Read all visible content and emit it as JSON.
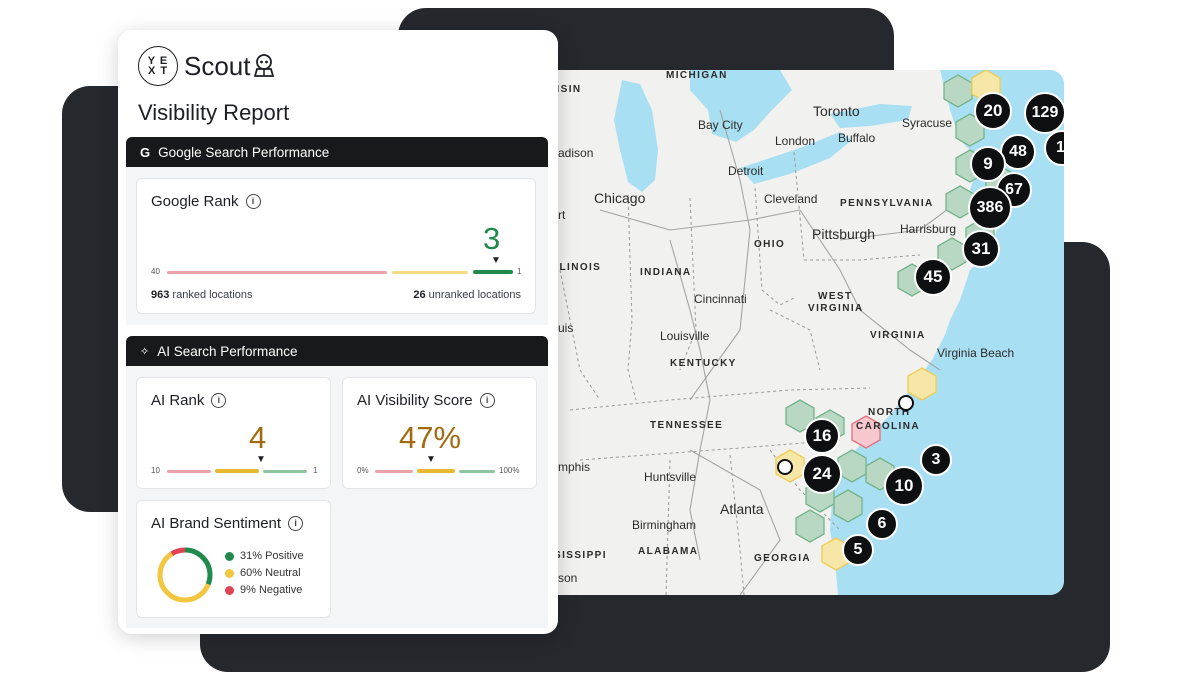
{
  "brand": {
    "logo_text": "YEXT",
    "product": "Scout"
  },
  "report_title": "Visibility Report",
  "google_section": {
    "title": "Google Search Performance",
    "rank_card": {
      "title": "Google Rank",
      "value": "3",
      "scale_min": "40",
      "scale_max": "1",
      "ranked_count": "963",
      "ranked_label": "ranked locations",
      "unranked_count": "26",
      "unranked_label": "unranked locations"
    }
  },
  "ai_section": {
    "title": "AI Search Performance",
    "rank_card": {
      "title": "AI Rank",
      "value": "4",
      "scale_min": "10",
      "scale_max": "1"
    },
    "visibility_card": {
      "title": "AI Visibility Score",
      "value": "47%",
      "scale_min": "0%",
      "scale_max": "100%"
    },
    "sentiment_card": {
      "title": "AI Brand Sentiment",
      "positive": "31% Positive",
      "neutral": "60% Neutral",
      "negative": "9% Negative",
      "positive_pct": 31,
      "neutral_pct": 60,
      "negative_pct": 9
    }
  },
  "colors": {
    "positive": "#1f8a4c",
    "neutral": "#f3c63f",
    "negative": "#e04252",
    "water": "#a9dff2",
    "hex_fill": "#b9d8c4",
    "dark": "#25282d"
  },
  "map": {
    "cities": {
      "toronto": "Toronto",
      "bay_city": "Bay City",
      "syracuse": "Syracuse",
      "london": "London",
      "buffalo": "Buffalo",
      "detroit": "Detroit",
      "chicago": "Chicago",
      "cleveland": "Cleveland",
      "pittsburgh": "Pittsburgh",
      "harrisburg": "Harrisburg",
      "cincinnati": "Cincinnati",
      "louisville": "Louisville",
      "virginia_beach": "Virginia Beach",
      "huntsville": "Huntsville",
      "atlanta": "Atlanta",
      "birmingham": "Birmingham",
      "madison": "adison",
      "memphis": "mphis",
      "jackson": "son",
      "louis": "uis",
      "rt": "rt"
    },
    "states": {
      "michigan": "MICHIGAN",
      "wisconsin": "NSIN",
      "pennsylvania": "PENNSYLVANIA",
      "ohio": "OHIO",
      "illinois": "LLINOIS",
      "indiana": "INDIANA",
      "west": "WEST",
      "virginia_w": "VIRGINIA",
      "virginia": "VIRGINIA",
      "kentucky": "KENTUCKY",
      "north": "NORTH",
      "carolina": "CAROLINA",
      "tennessee": "TENNESSEE",
      "mississippi": "SISSIPPI",
      "alabama": "ALABAMA",
      "georgia": "GEORGIA"
    },
    "clusters": [
      "20",
      "129",
      "48",
      "9",
      "67",
      "386",
      "31",
      "45",
      "16",
      "24",
      "3",
      "10",
      "6",
      "5",
      "1"
    ]
  }
}
